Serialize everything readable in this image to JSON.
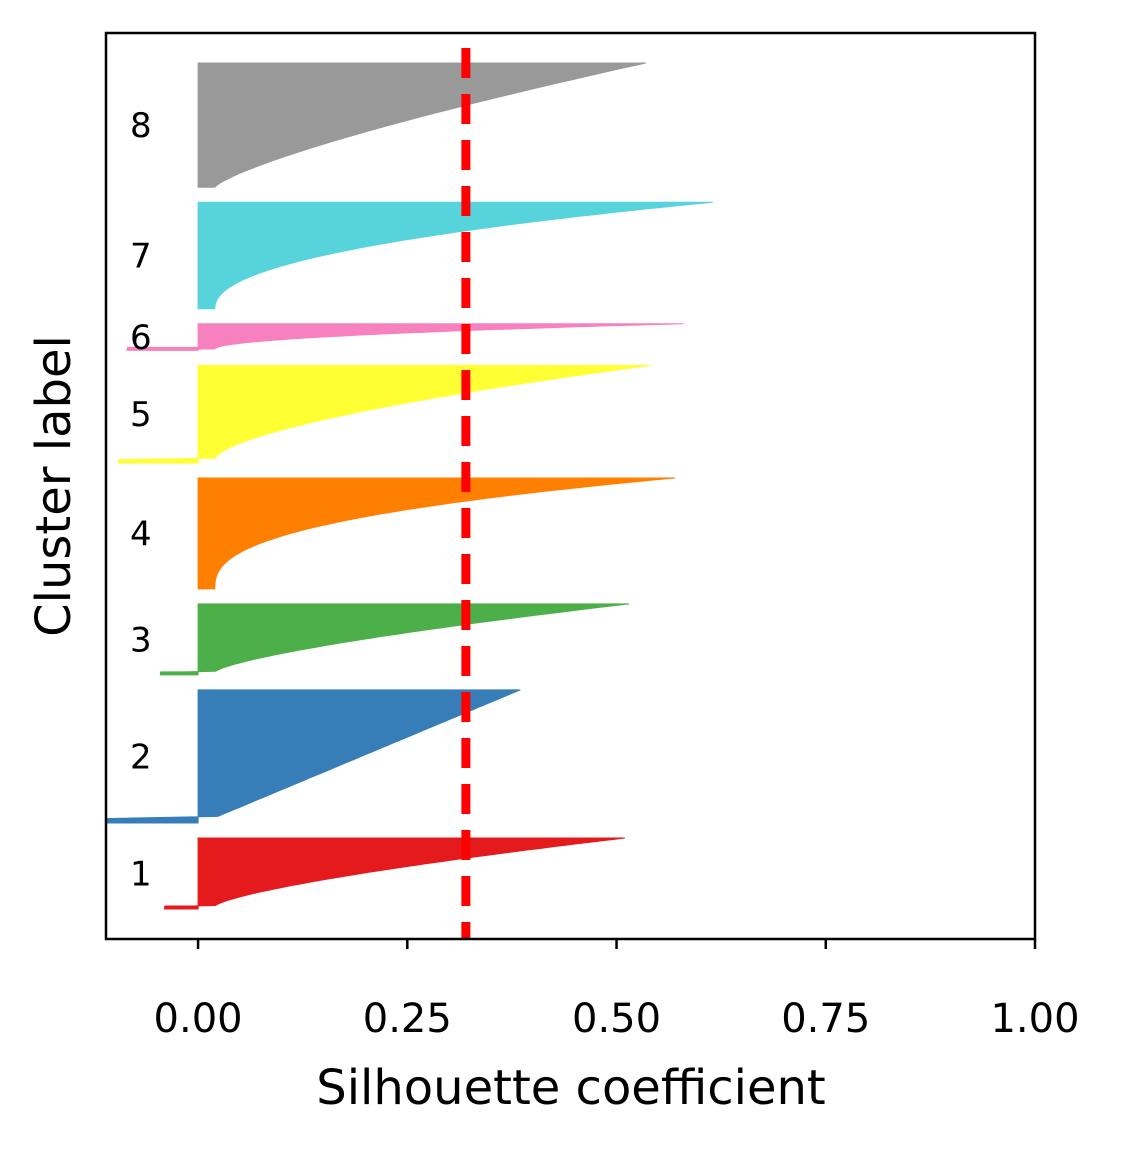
{
  "chart_data": {
    "type": "silhouette",
    "xlabel": "Silhouette coefficient",
    "ylabel": "Cluster label",
    "xlim": [
      -0.11,
      1.0
    ],
    "xticks": [
      "0.00",
      "0.25",
      "0.50",
      "0.75",
      "1.00"
    ],
    "mean_silhouette": 0.32,
    "mean_line_color": "#ff0000",
    "grid": false,
    "clusters": [
      {
        "label": "1",
        "color": "#e41a1c",
        "min": -0.04,
        "max": 0.51,
        "start_value": 0.0,
        "curve": 1.4,
        "size": 0.8
      },
      {
        "label": "2",
        "color": "#377eb8",
        "min": -0.11,
        "max": 0.385,
        "start_value": 0.0,
        "curve": 1.0,
        "size": 1.5
      },
      {
        "label": "3",
        "color": "#4daf4a",
        "min": -0.045,
        "max": 0.515,
        "start_value": 0.0,
        "curve": 1.4,
        "size": 0.8
      },
      {
        "label": "4",
        "color": "#ff7f00",
        "min": 0.0,
        "max": 0.57,
        "start_value": 0.0,
        "curve": 2.6,
        "size": 1.25
      },
      {
        "label": "5",
        "color": "#ffff33",
        "min": -0.095,
        "max": 0.54,
        "start_value": 0.0,
        "curve": 1.6,
        "size": 1.1
      },
      {
        "label": "6",
        "color": "#f781bf",
        "min": -0.085,
        "max": 0.58,
        "start_value": 0.0,
        "curve": 2.0,
        "size": 0.3
      },
      {
        "label": "7",
        "color": "#56d3db",
        "min": 0.0,
        "max": 0.615,
        "start_value": 0.0,
        "curve": 2.2,
        "size": 1.2
      },
      {
        "label": "8",
        "color": "#999999",
        "min": 0.0,
        "max": 0.535,
        "start_value": 0.0,
        "curve": 1.3,
        "size": 1.4
      }
    ]
  }
}
